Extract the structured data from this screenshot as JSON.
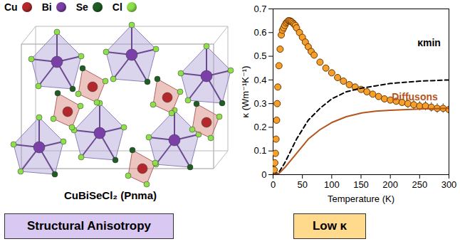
{
  "atom_legend": [
    {
      "name": "Cu",
      "color": "#b3282b"
    },
    {
      "name": "Bi",
      "color": "#7b3fa8"
    },
    {
      "name": "Se",
      "color": "#1e5e22"
    },
    {
      "name": "Cl",
      "color": "#8ee04a"
    }
  ],
  "structure_label": "CuBiSeCl₂ (Pnma)",
  "boxes": [
    {
      "text": "Structural Anisotropy",
      "color": "#d9c8f2"
    },
    {
      "text": "Low κ",
      "color": "#ffd98c"
    }
  ],
  "chart_data": {
    "type": "scatter",
    "xlabel": "Temperature (K)",
    "ylabel": "κ (Wm⁻¹K⁻¹)",
    "xlim": [
      0,
      300
    ],
    "xticks": [
      0,
      50,
      100,
      150,
      200,
      250,
      300
    ],
    "ylim": [
      0,
      0.7
    ],
    "yticks": [
      0,
      0.1,
      0.2,
      0.3,
      0.4,
      0.5,
      0.6,
      0.7
    ],
    "series": [
      {
        "type": "scatter",
        "marker": "circle",
        "color": "#f5a02a",
        "x": [
          2,
          3,
          4,
          5,
          6,
          7,
          8,
          10,
          12,
          14,
          16,
          18,
          20,
          22,
          24,
          26,
          28,
          30,
          32,
          34,
          36,
          38,
          40,
          45,
          50,
          55,
          60,
          65,
          70,
          80,
          90,
          100,
          110,
          120,
          130,
          140,
          150,
          160,
          170,
          180,
          190,
          200,
          210,
          220,
          230,
          240,
          250,
          260,
          270,
          280,
          290,
          300
        ],
        "values": [
          0.02,
          0.05,
          0.09,
          0.15,
          0.23,
          0.3,
          0.37,
          0.46,
          0.53,
          0.59,
          0.61,
          0.62,
          0.63,
          0.64,
          0.645,
          0.65,
          0.65,
          0.648,
          0.645,
          0.64,
          0.635,
          0.63,
          0.62,
          0.6,
          0.58,
          0.56,
          0.54,
          0.52,
          0.505,
          0.475,
          0.45,
          0.43,
          0.41,
          0.395,
          0.38,
          0.37,
          0.36,
          0.35,
          0.34,
          0.33,
          0.32,
          0.315,
          0.31,
          0.305,
          0.3,
          0.295,
          0.29,
          0.29,
          0.285,
          0.28,
          0.28,
          0.275
        ],
        "errors": [
          null,
          null,
          null,
          null,
          null,
          null,
          null,
          null,
          null,
          null,
          null,
          null,
          null,
          null,
          null,
          null,
          null,
          null,
          null,
          null,
          null,
          null,
          null,
          null,
          null,
          null,
          null,
          null,
          null,
          null,
          null,
          null,
          null,
          null,
          null,
          null,
          null,
          null,
          null,
          null,
          null,
          null,
          null,
          null,
          0.02,
          0.02,
          0.02,
          0.02,
          0.02,
          0.02,
          0.02,
          0.02
        ]
      },
      {
        "name": "κmin",
        "type": "line",
        "line_style": "dashed",
        "color": "#000000",
        "x": [
          0,
          10,
          20,
          30,
          40,
          50,
          60,
          80,
          100,
          125,
          150,
          175,
          200,
          250,
          300
        ],
        "values": [
          0,
          0.01,
          0.05,
          0.1,
          0.15,
          0.19,
          0.23,
          0.28,
          0.32,
          0.35,
          0.365,
          0.375,
          0.385,
          0.395,
          0.4
        ]
      },
      {
        "name": "Diffusons",
        "type": "line",
        "line_style": "solid",
        "color": "#b5541c",
        "x": [
          0,
          10,
          20,
          30,
          40,
          50,
          60,
          80,
          100,
          125,
          150,
          175,
          200,
          250,
          300
        ],
        "values": [
          0,
          0.005,
          0.03,
          0.06,
          0.09,
          0.12,
          0.15,
          0.19,
          0.22,
          0.245,
          0.26,
          0.268,
          0.272,
          0.277,
          0.28
        ]
      }
    ]
  }
}
